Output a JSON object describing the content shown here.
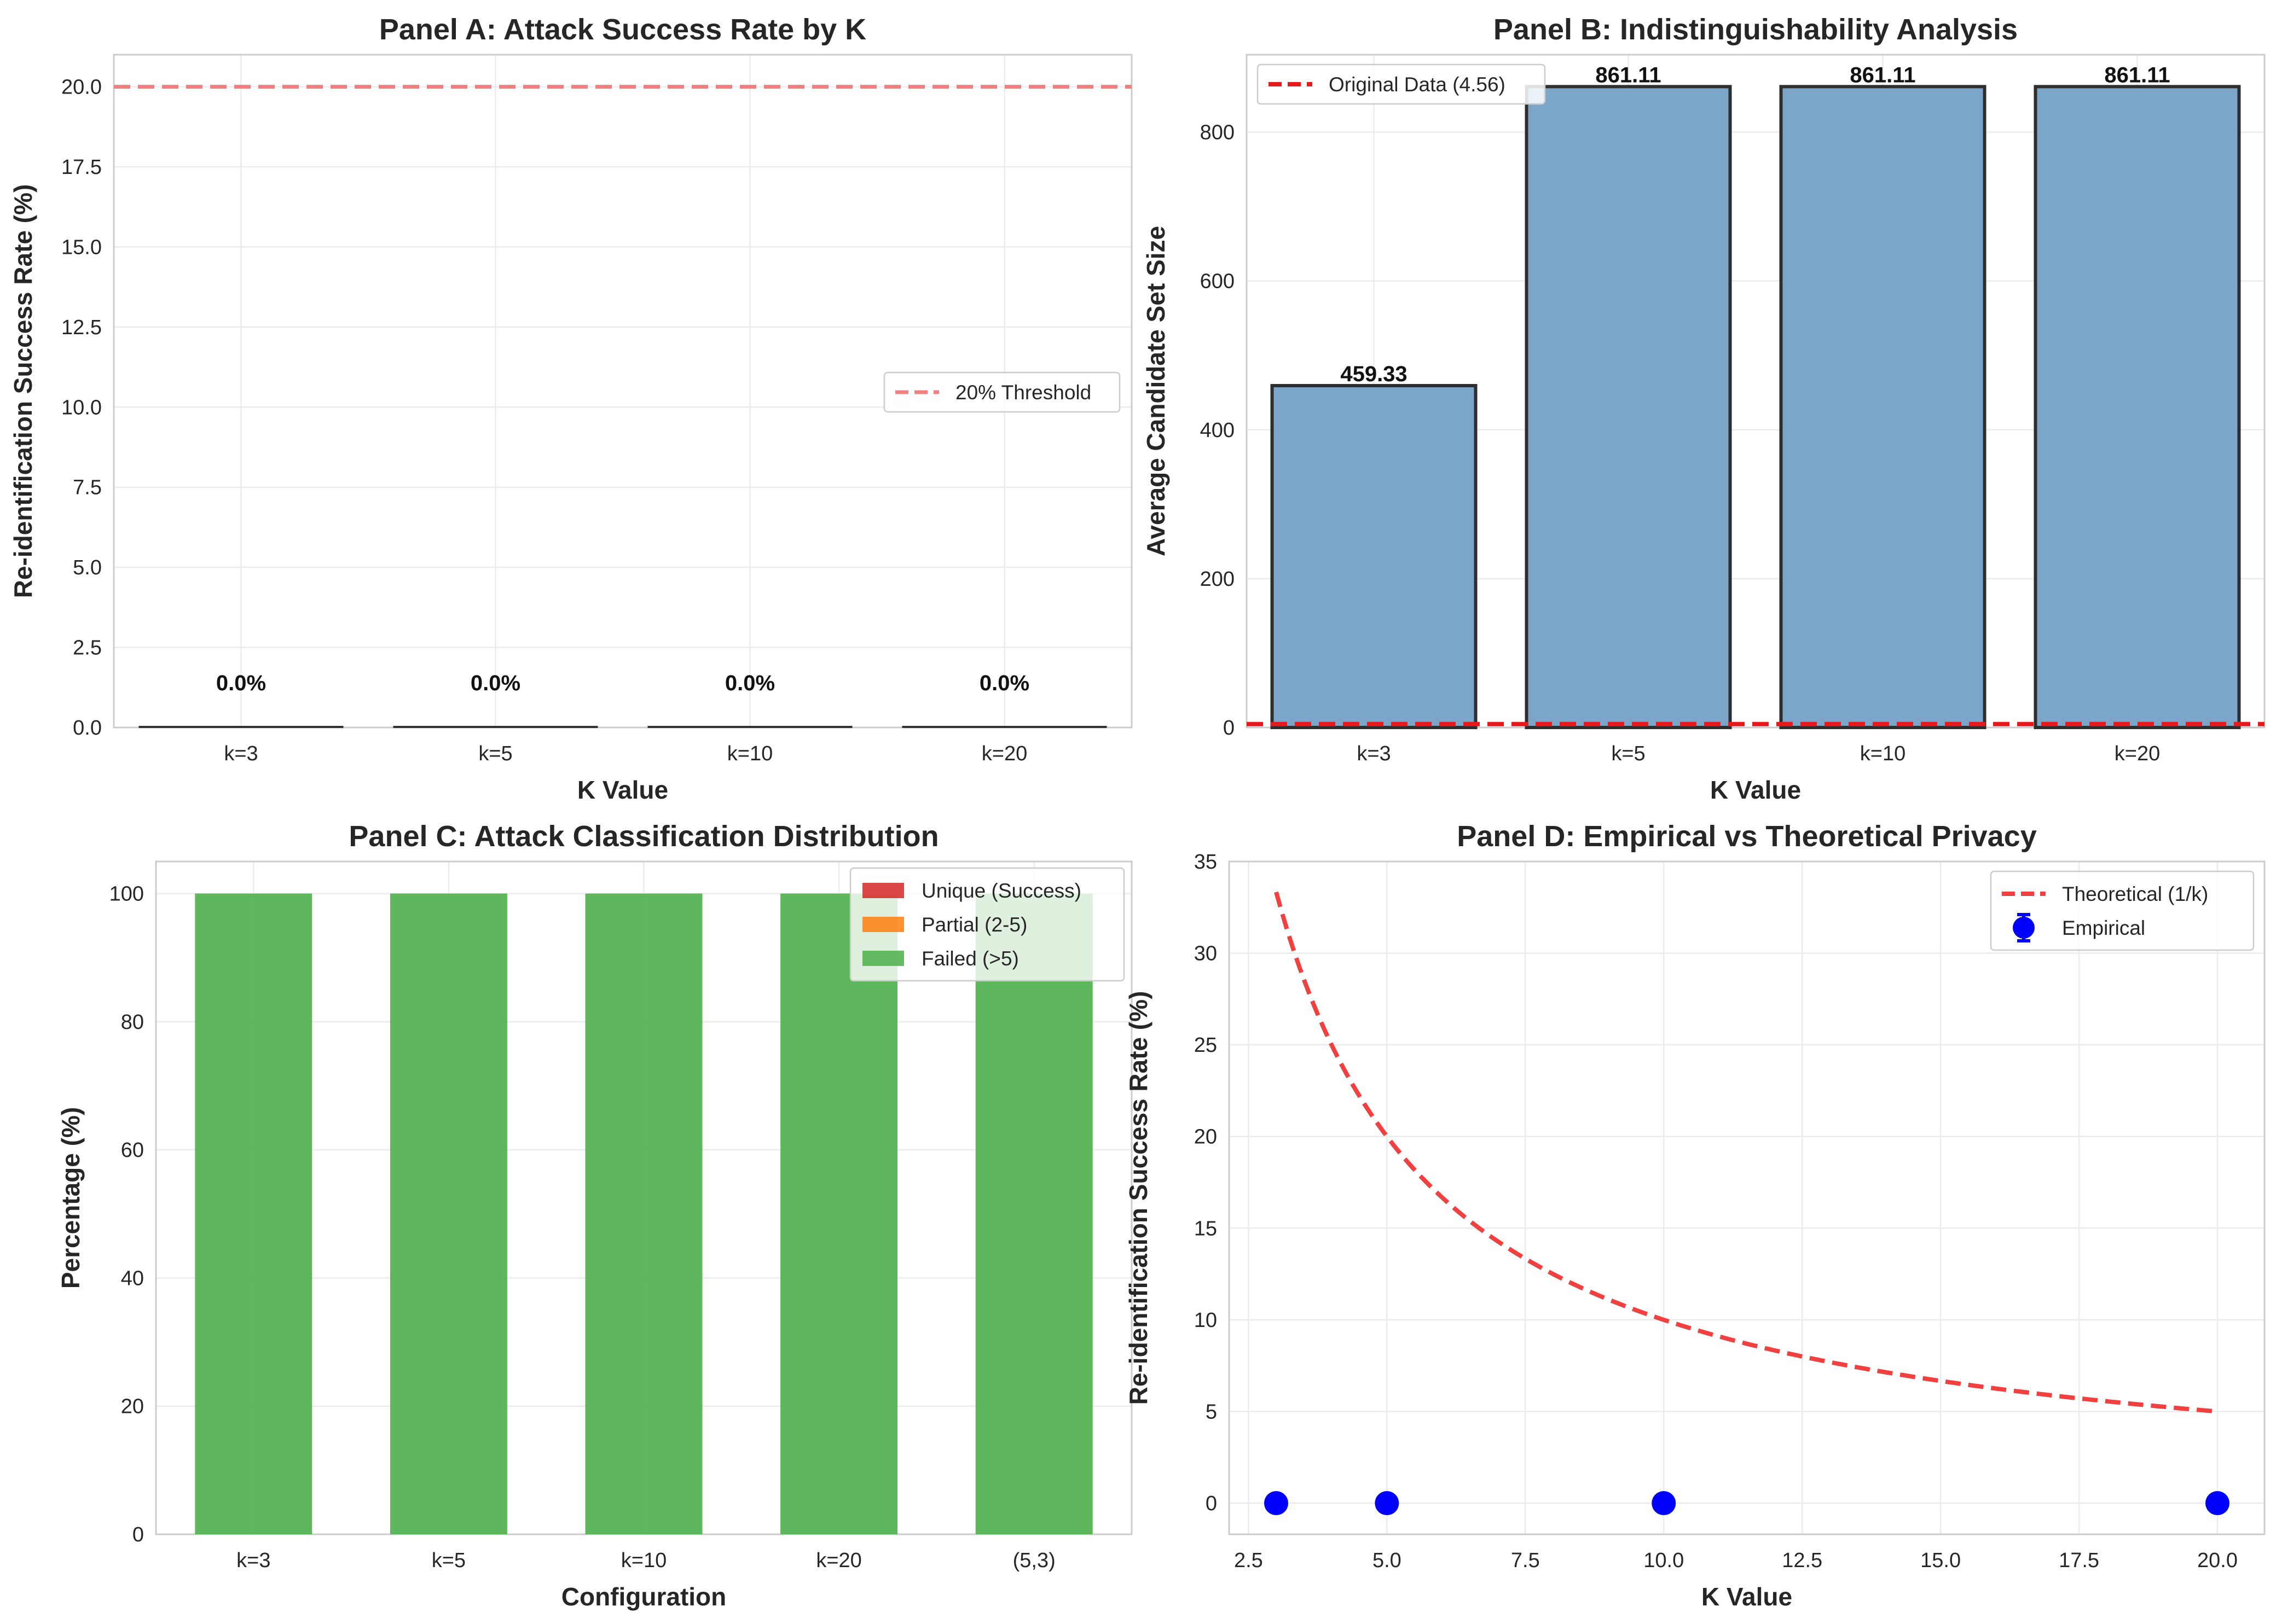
{
  "chart_data": [
    {
      "id": "A",
      "type": "bar",
      "title": "Panel A: Attack Success Rate by K",
      "xlabel": "K Value",
      "ylabel": "Re-identification Success Rate (%)",
      "categories": [
        "k=3",
        "k=5",
        "k=10",
        "k=20"
      ],
      "values": [
        0.0,
        0.0,
        0.0,
        0.0
      ],
      "value_labels": [
        "0.0%",
        "0.0%",
        "0.0%",
        "0.0%"
      ],
      "ylim": [
        0,
        21
      ],
      "yticks": [
        0.0,
        2.5,
        5.0,
        7.5,
        10.0,
        12.5,
        15.0,
        17.5,
        20.0
      ],
      "ytick_labels": [
        "0.0",
        "2.5",
        "5.0",
        "7.5",
        "10.0",
        "12.5",
        "15.0",
        "17.5",
        "20.0"
      ],
      "threshold": {
        "value": 20,
        "label": "20% Threshold",
        "color": "#f08080"
      },
      "grid": true,
      "legend": "center-right"
    },
    {
      "id": "B",
      "type": "bar",
      "title": "Panel B: Indistinguishability Analysis",
      "xlabel": "K Value",
      "ylabel": "Average Candidate Set Size",
      "categories": [
        "k=3",
        "k=5",
        "k=10",
        "k=20"
      ],
      "values": [
        459.33,
        861.11,
        861.11,
        861.11
      ],
      "value_labels": [
        "459.33",
        "861.11",
        "861.11",
        "861.11"
      ],
      "ylim": [
        0,
        904
      ],
      "yticks": [
        0,
        200,
        400,
        600,
        800
      ],
      "ytick_labels": [
        "0",
        "200",
        "400",
        "600",
        "800"
      ],
      "bar_color": "#7ba6ca",
      "reference": {
        "value": 4.56,
        "label": "Original Data (4.56)",
        "color": "#e41a1c"
      },
      "grid": true,
      "legend": "top-left"
    },
    {
      "id": "C",
      "type": "bar",
      "stacked": true,
      "title": "Panel C: Attack Classification Distribution",
      "xlabel": "Configuration",
      "ylabel": "Percentage (%)",
      "categories": [
        "k=3",
        "k=5",
        "k=10",
        "k=20",
        "(5,3)"
      ],
      "series": [
        {
          "name": "Unique (Success)",
          "color": "#d62728",
          "values": [
            0,
            0,
            0,
            0,
            0
          ]
        },
        {
          "name": "Partial (2-5)",
          "color": "#ff7f0e",
          "values": [
            0,
            0,
            0,
            0,
            0
          ]
        },
        {
          "name": "Failed (>5)",
          "color": "#4daf4a",
          "values": [
            100,
            100,
            100,
            100,
            100
          ]
        }
      ],
      "ylim": [
        0,
        105
      ],
      "yticks": [
        0,
        20,
        40,
        60,
        80,
        100
      ],
      "ytick_labels": [
        "0",
        "20",
        "40",
        "60",
        "80",
        "100"
      ],
      "grid": true,
      "legend": "top-right"
    },
    {
      "id": "D",
      "type": "line",
      "title": "Panel D: Empirical vs Theoretical Privacy",
      "xlabel": "K Value",
      "ylabel": "Re-identification Success Rate (%)",
      "xlim": [
        2.15,
        20.85
      ],
      "ylim": [
        -1.7,
        35
      ],
      "xticks": [
        2.5,
        5.0,
        7.5,
        10.0,
        12.5,
        15.0,
        17.5,
        20.0
      ],
      "xtick_labels": [
        "2.5",
        "5.0",
        "7.5",
        "10.0",
        "12.5",
        "15.0",
        "17.5",
        "20.0"
      ],
      "yticks": [
        0,
        5,
        10,
        15,
        20,
        25,
        30,
        35
      ],
      "ytick_labels": [
        "0",
        "5",
        "10",
        "15",
        "20",
        "25",
        "30",
        "35"
      ],
      "series": [
        {
          "name": "Theoretical (1/k)",
          "color": "#f04040",
          "style": "dashed",
          "function": "100/k",
          "x_range": [
            3,
            20
          ]
        },
        {
          "name": "Empirical",
          "color": "#0000ff",
          "style": "markers",
          "x": [
            3,
            5,
            10,
            20
          ],
          "y": [
            0,
            0,
            0,
            0
          ]
        }
      ],
      "grid": true,
      "legend": "top-right"
    }
  ]
}
